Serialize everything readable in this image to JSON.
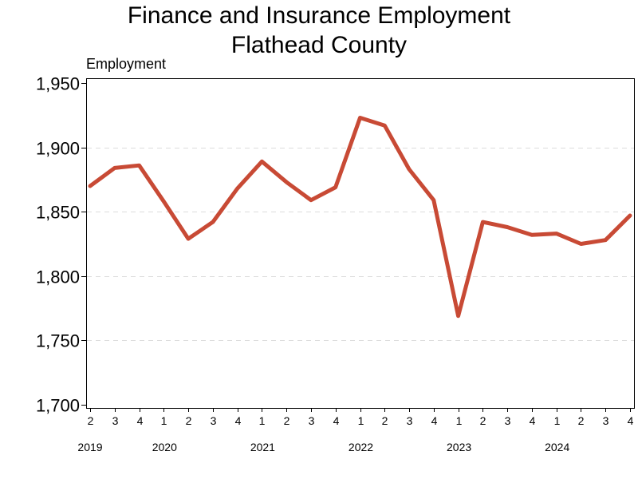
{
  "chart_data": {
    "type": "line",
    "title": [
      "Finance and Insurance Employment",
      "Flathead County"
    ],
    "ylabel": "Employment",
    "xlabel": "",
    "ylim": [
      1700,
      1950
    ],
    "y_ticks": [
      "1,700",
      "1,750",
      "1,800",
      "1,850",
      "1,900",
      "1,950"
    ],
    "y_tick_values": [
      1700,
      1750,
      1800,
      1850,
      1900,
      1950
    ],
    "grid": "horizontal dashed",
    "legend": "none",
    "quarters": [
      "2",
      "3",
      "4",
      "1",
      "2",
      "3",
      "4",
      "1",
      "2",
      "3",
      "4",
      "1",
      "2",
      "3",
      "4",
      "1",
      "2",
      "3",
      "4",
      "1",
      "2",
      "3",
      "4"
    ],
    "years": [
      {
        "label": "2019",
        "quarter_index": 0
      },
      {
        "label": "2020",
        "quarter_index": 3
      },
      {
        "label": "2021",
        "quarter_index": 7
      },
      {
        "label": "2022",
        "quarter_index": 11
      },
      {
        "label": "2023",
        "quarter_index": 15
      },
      {
        "label": "2024",
        "quarter_index": 19
      }
    ],
    "series": [
      {
        "color": "#c84a35",
        "values": [
          1870,
          1884,
          1886,
          1858,
          1829,
          1842,
          1868,
          1889,
          1873,
          1859,
          1869,
          1923,
          1917,
          1883,
          1859,
          1769,
          1842,
          1838,
          1832,
          1833,
          1825,
          1828,
          1847
        ]
      }
    ]
  }
}
